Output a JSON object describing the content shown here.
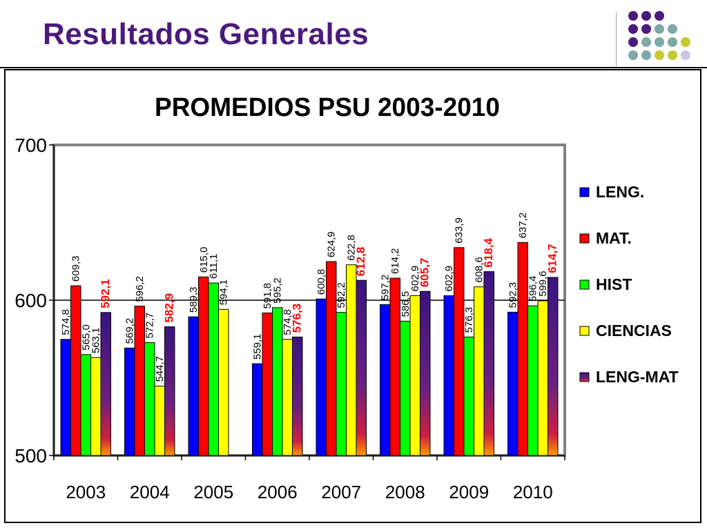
{
  "slide": {
    "title": "Resultados Generales",
    "accent_colors": [
      "#4b1a7d",
      "#7fa8a8",
      "#c8c832",
      "#c8c8e6"
    ]
  },
  "chart_data": {
    "type": "bar",
    "title": "PROMEDIOS PSU 2003-2010",
    "xlabel": "",
    "ylabel": "",
    "ylim": [
      500,
      700
    ],
    "yticks": [
      "500",
      "600",
      "700"
    ],
    "categories": [
      "2003",
      "2004",
      "2005",
      "2006",
      "2007",
      "2008",
      "2009",
      "2010"
    ],
    "legend_position": "right",
    "gridlines": [
      600
    ],
    "series": [
      {
        "name": "LENG.",
        "color": "#0000ff",
        "values": [
          574.8,
          569.2,
          589.3,
          559.1,
          600.8,
          597.2,
          602.9,
          592.3
        ],
        "labels": [
          "574,8",
          "569,2",
          "589,3",
          "559,1",
          "600,8",
          "597,2",
          "602,9",
          "592,3"
        ],
        "label_color": "#000000"
      },
      {
        "name": "MAT.",
        "color": "#ff0000",
        "values": [
          609.3,
          596.2,
          615.0,
          591.8,
          624.9,
          614.2,
          633.9,
          637.2
        ],
        "labels": [
          "609,3",
          "596,2",
          "615,0",
          "591,8",
          "624,9",
          "614,2",
          "633,9",
          "637,2"
        ],
        "label_color": "#000000"
      },
      {
        "name": "HIST",
        "color": "#00ff00",
        "values": [
          565.0,
          572.7,
          611.1,
          595.2,
          592.2,
          586.5,
          576.3,
          596.4
        ],
        "labels": [
          "565,0",
          "572,7",
          "611,1",
          "595,2",
          "592,2",
          "586,5",
          "576,3",
          "596,4"
        ],
        "label_color": "#000000"
      },
      {
        "name": "CIENCIAS",
        "color": "#ffff00",
        "values": [
          563.1,
          544.7,
          594.1,
          574.8,
          622.8,
          602.9,
          608.6,
          599.6
        ],
        "labels": [
          "563,1",
          "544,7",
          "594,1",
          "574,8",
          "622,8",
          "602,9",
          "608,6",
          "599,6"
        ],
        "label_color": "#000000"
      },
      {
        "name": "LENG-MAT",
        "color": "#3a1480",
        "values": [
          592.1,
          582.9,
          null,
          576.3,
          612.8,
          605.7,
          618.4,
          614.7
        ],
        "labels": [
          "592,1",
          "582,9",
          null,
          "576,3",
          "612,8",
          "605,7",
          "618,4",
          "614,7"
        ],
        "label_color": "#ff0000"
      }
    ]
  }
}
